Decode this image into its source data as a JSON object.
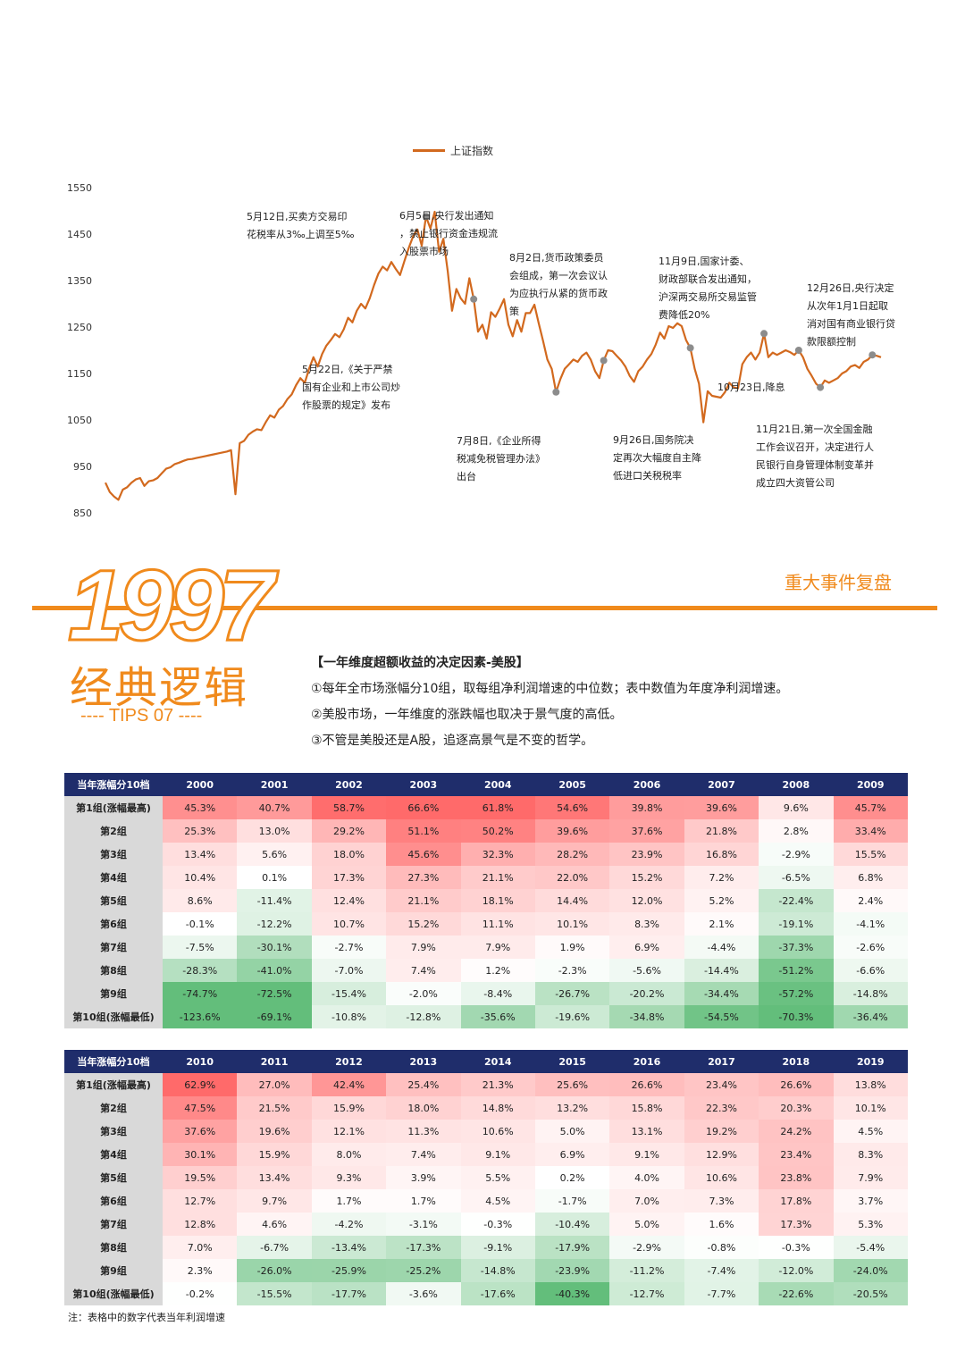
{
  "chart_data": {
    "type": "line",
    "legend": "上证指数",
    "yticks": [
      "1550",
      "1450",
      "1350",
      "1250",
      "1150",
      "1050",
      "950",
      "850"
    ],
    "ylim": [
      850,
      1550
    ],
    "series": [
      {
        "name": "上证指数",
        "color": "#d2691e",
        "values": [
          915,
          895,
          885,
          878,
          900,
          905,
          915,
          922,
          925,
          908,
          918,
          920,
          925,
          935,
          945,
          948,
          955,
          958,
          962,
          965,
          966,
          968,
          970,
          972,
          974,
          976,
          978,
          980,
          982,
          985,
          890,
          1000,
          1005,
          1018,
          1025,
          1030,
          1028,
          1045,
          1060,
          1055,
          1072,
          1080,
          1095,
          1105,
          1125,
          1140,
          1130,
          1160,
          1185,
          1165,
          1192,
          1210,
          1222,
          1235,
          1228,
          1245,
          1270,
          1260,
          1285,
          1300,
          1290,
          1312,
          1340,
          1365,
          1380,
          1372,
          1390,
          1375,
          1362,
          1392,
          1420,
          1445,
          1460,
          1425,
          1488,
          1462,
          1498,
          1412,
          1440,
          1370,
          1285,
          1332,
          1312,
          1300,
          1355,
          1310,
          1240,
          1255,
          1225,
          1282,
          1272,
          1290,
          1310,
          1255,
          1230,
          1265,
          1240,
          1280,
          1280,
          1298,
          1258,
          1220,
          1180,
          1160,
          1110,
          1138,
          1160,
          1170,
          1180,
          1175,
          1188,
          1195,
          1180,
          1155,
          1140,
          1178,
          1200,
          1198,
          1188,
          1178,
          1165,
          1145,
          1132,
          1155,
          1165,
          1180,
          1192,
          1212,
          1238,
          1225,
          1252,
          1248,
          1258,
          1252,
          1222,
          1205,
          1160,
          1128,
          1045,
          1112,
          1102,
          1100,
          1098,
          1110,
          1130,
          1120,
          1118,
          1170,
          1185,
          1195,
          1180,
          1195,
          1236,
          1185,
          1195,
          1190,
          1195,
          1200,
          1196,
          1190,
          1200,
          1185,
          1160,
          1145,
          1128,
          1120,
          1135,
          1130,
          1135,
          1140,
          1150,
          1155,
          1165,
          1168,
          1162,
          1175,
          1180,
          1190,
          1188,
          1185
        ]
      }
    ],
    "markers": [
      {
        "index": 74
      },
      {
        "index": 85
      },
      {
        "index": 104
      },
      {
        "index": 115
      },
      {
        "index": 135
      },
      {
        "index": 152
      },
      {
        "index": 160
      },
      {
        "index": 165
      },
      {
        "index": 177
      }
    ],
    "annotations": [
      "5月12日,买卖方交易印花税率从3‰上调至5‰",
      "6月5日,央行发出通知，禁止银行资金违规流入股票市场",
      "8月2日,货币政策委员会组成，第一次会议认为应执行从紧的货币政策",
      "11月9日,国家计委、财政部联合发出通知，沪深两交易所交易监管费降低20%",
      "12月26日,央行决定从次年1月1日起取消对国有商业银行贷款限额控制",
      "5月22日,《关于严禁国有企业和上市公司炒作股票的规定》发布",
      "7月8日,《企业所得税减免税管理办法》出台",
      "9月26日,国务院决定再次大幅度自主降低进口关税税率",
      "10月23日,降息",
      "11月21日,第一次全国金融工作会议召开，决定进行人民银行自身管理体制变革并成立四大资管公司"
    ]
  },
  "section": {
    "year": "1997",
    "subtitle": "经典逻辑",
    "tips": "---- TIPS 07 ----",
    "tag": "重大事件复盘",
    "color": "#f08a1c"
  },
  "text": {
    "heading": "【一年维度超额收益的决定因素-美股】",
    "lines": [
      "①每年全市场涨幅分10组，取每组净利润增速的中位数；表中数值为年度净利润增速。",
      "②美股市场，一年维度的涨跌幅也取决于景气度的高低。",
      "③不管是美股还是A股，追逐高景气是不变的哲学。"
    ]
  },
  "tables": [
    {
      "header": "当年涨幅分10档",
      "years": [
        "2000",
        "2001",
        "2002",
        "2003",
        "2004",
        "2005",
        "2006",
        "2007",
        "2008",
        "2009"
      ],
      "rows": [
        {
          "label": "第1组(涨幅最高)",
          "cells": [
            "45.3%",
            "40.7%",
            "58.7%",
            "66.6%",
            "61.8%",
            "54.6%",
            "39.8%",
            "39.6%",
            "9.6%",
            "45.7%"
          ]
        },
        {
          "label": "第2组",
          "cells": [
            "25.3%",
            "13.0%",
            "29.2%",
            "51.1%",
            "50.2%",
            "39.6%",
            "37.6%",
            "21.8%",
            "2.8%",
            "33.4%"
          ]
        },
        {
          "label": "第3组",
          "cells": [
            "13.4%",
            "5.6%",
            "18.0%",
            "45.6%",
            "32.3%",
            "28.2%",
            "23.9%",
            "16.8%",
            "-2.9%",
            "15.5%"
          ]
        },
        {
          "label": "第4组",
          "cells": [
            "10.4%",
            "0.1%",
            "17.3%",
            "27.3%",
            "21.1%",
            "22.0%",
            "15.2%",
            "7.2%",
            "-6.5%",
            "6.8%"
          ]
        },
        {
          "label": "第5组",
          "cells": [
            "8.6%",
            "-11.4%",
            "12.4%",
            "21.1%",
            "18.1%",
            "14.4%",
            "12.0%",
            "5.2%",
            "-22.4%",
            "2.4%"
          ]
        },
        {
          "label": "第6组",
          "cells": [
            "-0.1%",
            "-12.2%",
            "10.7%",
            "15.2%",
            "11.1%",
            "10.1%",
            "8.3%",
            "2.1%",
            "-19.1%",
            "-4.1%"
          ]
        },
        {
          "label": "第7组",
          "cells": [
            "-7.5%",
            "-30.1%",
            "-2.7%",
            "7.9%",
            "7.9%",
            "1.9%",
            "6.9%",
            "-4.4%",
            "-37.3%",
            "-2.6%"
          ]
        },
        {
          "label": "第8组",
          "cells": [
            "-28.3%",
            "-41.0%",
            "-7.0%",
            "7.4%",
            "1.2%",
            "-2.3%",
            "-5.6%",
            "-14.4%",
            "-51.2%",
            "-6.6%"
          ]
        },
        {
          "label": "第9组",
          "cells": [
            "-74.7%",
            "-72.5%",
            "-15.4%",
            "-2.0%",
            "-8.4%",
            "-26.7%",
            "-20.2%",
            "-34.4%",
            "-57.2%",
            "-14.8%"
          ]
        },
        {
          "label": "第10组(涨幅最低)",
          "cells": [
            "-123.6%",
            "-69.1%",
            "-10.8%",
            "-12.8%",
            "-35.6%",
            "-19.6%",
            "-34.8%",
            "-54.5%",
            "-70.3%",
            "-36.4%"
          ]
        }
      ]
    },
    {
      "header": "当年涨幅分10档",
      "years": [
        "2010",
        "2011",
        "2012",
        "2013",
        "2014",
        "2015",
        "2016",
        "2017",
        "2018",
        "2019"
      ],
      "rows": [
        {
          "label": "第1组(涨幅最高)",
          "cells": [
            "62.9%",
            "27.0%",
            "42.4%",
            "25.4%",
            "21.3%",
            "25.6%",
            "26.6%",
            "23.4%",
            "26.6%",
            "13.8%"
          ]
        },
        {
          "label": "第2组",
          "cells": [
            "47.5%",
            "21.5%",
            "15.9%",
            "18.0%",
            "14.8%",
            "13.2%",
            "15.8%",
            "22.3%",
            "20.3%",
            "10.1%"
          ]
        },
        {
          "label": "第3组",
          "cells": [
            "37.6%",
            "19.6%",
            "12.1%",
            "11.3%",
            "10.6%",
            "5.0%",
            "13.1%",
            "19.2%",
            "24.2%",
            "4.5%"
          ]
        },
        {
          "label": "第4组",
          "cells": [
            "30.1%",
            "15.9%",
            "8.0%",
            "7.4%",
            "9.1%",
            "6.9%",
            "9.1%",
            "12.9%",
            "23.4%",
            "8.3%"
          ]
        },
        {
          "label": "第5组",
          "cells": [
            "19.5%",
            "13.4%",
            "9.3%",
            "3.9%",
            "5.5%",
            "0.2%",
            "4.0%",
            "10.6%",
            "23.8%",
            "7.9%"
          ]
        },
        {
          "label": "第6组",
          "cells": [
            "12.7%",
            "9.7%",
            "1.7%",
            "1.7%",
            "4.5%",
            "-1.7%",
            "7.0%",
            "7.3%",
            "17.8%",
            "3.7%"
          ]
        },
        {
          "label": "第7组",
          "cells": [
            "12.8%",
            "4.6%",
            "-4.2%",
            "-3.1%",
            "-0.3%",
            "-10.4%",
            "5.0%",
            "1.6%",
            "17.3%",
            "5.3%"
          ]
        },
        {
          "label": "第8组",
          "cells": [
            "7.0%",
            "-6.7%",
            "-13.4%",
            "-17.3%",
            "-9.1%",
            "-17.9%",
            "-2.9%",
            "-0.8%",
            "-0.3%",
            "-5.4%"
          ]
        },
        {
          "label": "第9组",
          "cells": [
            "2.3%",
            "-26.0%",
            "-25.9%",
            "-25.2%",
            "-14.8%",
            "-23.9%",
            "-11.2%",
            "-7.4%",
            "-12.0%",
            "-24.0%"
          ]
        },
        {
          "label": "第10组(涨幅最低)",
          "cells": [
            "-0.2%",
            "-15.5%",
            "-17.7%",
            "-3.6%",
            "-17.6%",
            "-40.3%",
            "-12.7%",
            "-7.7%",
            "-22.6%",
            "-20.5%"
          ]
        }
      ]
    }
  ],
  "note": "注：表格中的数字代表当年利润增速"
}
